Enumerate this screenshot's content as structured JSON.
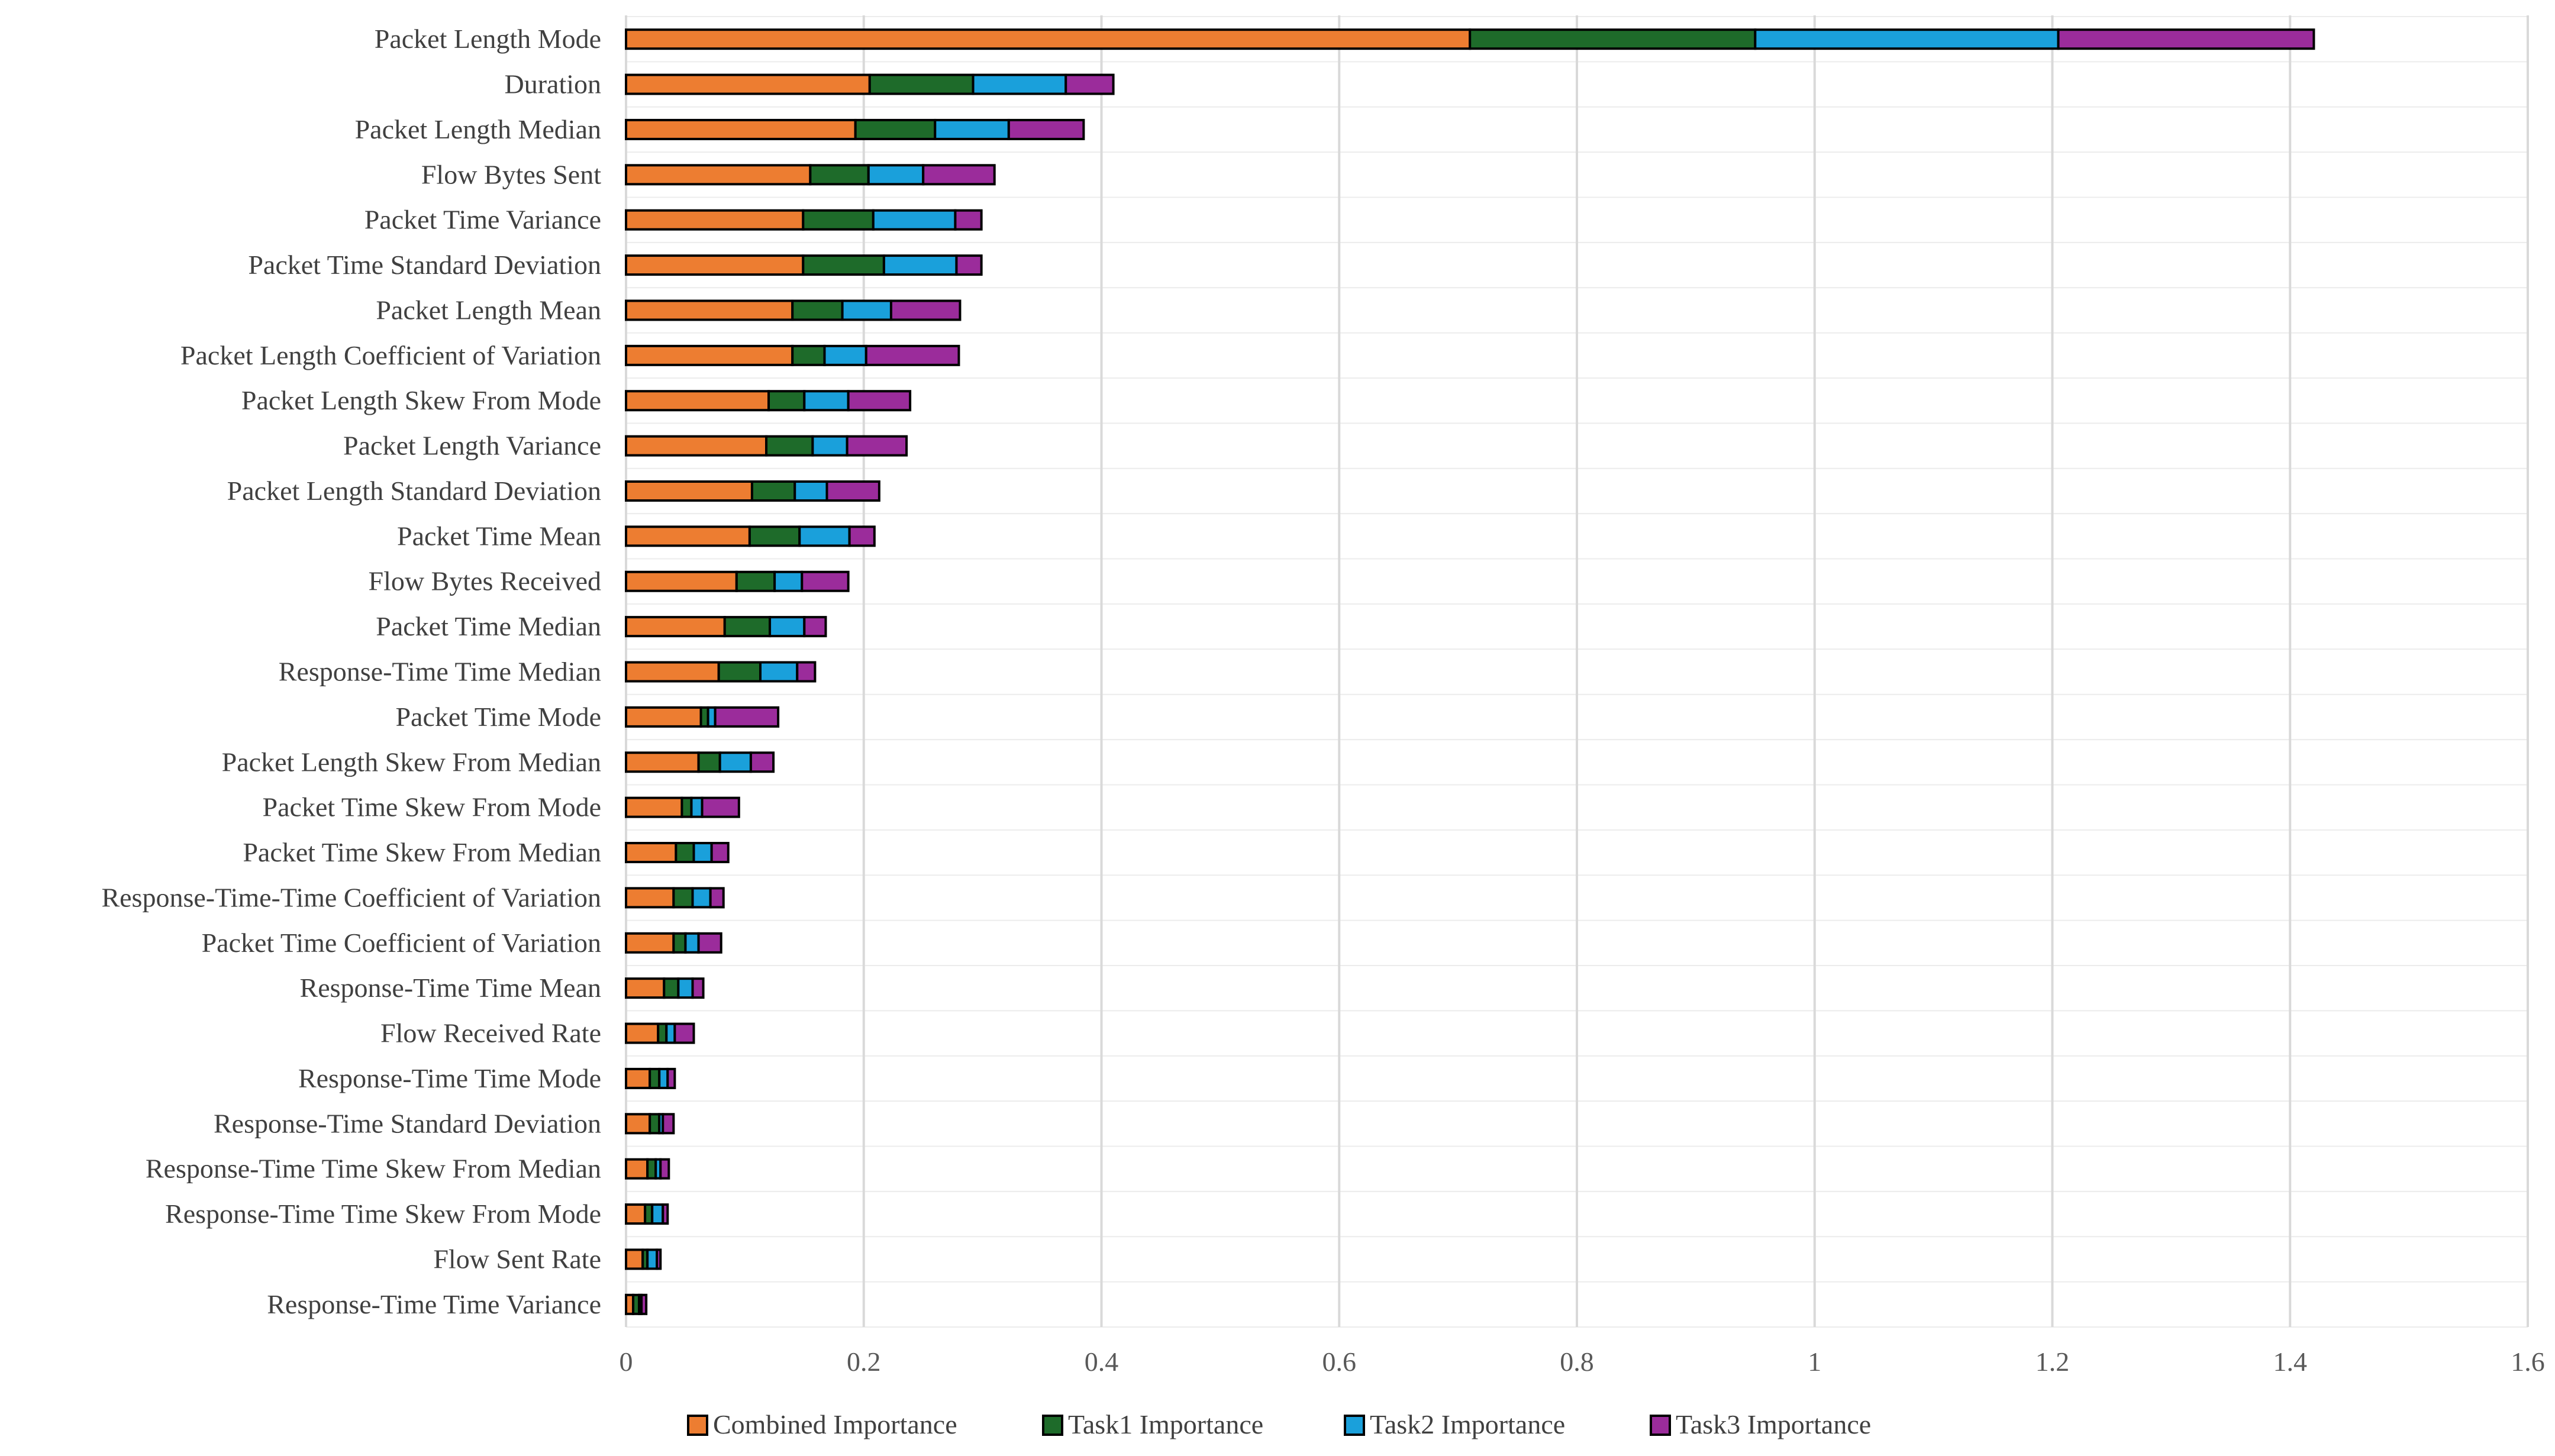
{
  "chart_data": {
    "type": "bar",
    "orientation": "horizontal",
    "stacked": true,
    "title": "",
    "xlabel": "",
    "ylabel": "",
    "xlim": [
      0,
      1.6
    ],
    "x_ticks": [
      "0",
      "0.2",
      "0.4",
      "0.6",
      "0.8",
      "1",
      "1.2",
      "1.4",
      "1.6"
    ],
    "grid": true,
    "legend_position": "bottom",
    "categories": [
      "Packet Length Mode",
      "Duration",
      "Packet Length Median",
      "Flow Bytes Sent",
      "Packet Time Variance",
      "Packet Time Standard Deviation",
      "Packet Length Mean",
      "Packet Length Coefficient of Variation",
      "Packet Length Skew From Mode",
      "Packet Length Variance",
      "Packet Length Standard Deviation",
      "Packet Time Mean",
      "Flow Bytes Received",
      "Packet Time Median",
      "Response-Time Time Median",
      "Packet Time Mode",
      "Packet Length Skew From Median",
      "Packet Time Skew From Mode",
      "Packet Time Skew From Median",
      "Response-Time-Time Coefficient of Variation",
      "Packet Time Coefficient of Variation",
      "Response-Time Time Mean",
      "Flow Received Rate",
      "Response-Time Time Mode",
      "Response-Time Standard Deviation",
      "Response-Time Time Skew From Median",
      "Response-Time Time Skew From Mode",
      "Flow Sent Rate",
      "Response-Time Time Variance"
    ],
    "series": [
      {
        "name": "Combined Importance",
        "color": "#ED7D31",
        "values": [
          0.71,
          0.205,
          0.193,
          0.155,
          0.149,
          0.149,
          0.14,
          0.14,
          0.12,
          0.118,
          0.106,
          0.104,
          0.093,
          0.083,
          0.078,
          0.063,
          0.061,
          0.047,
          0.042,
          0.04,
          0.04,
          0.032,
          0.027,
          0.02,
          0.02,
          0.018,
          0.016,
          0.014,
          0.006
        ]
      },
      {
        "name": "Task1 Importance",
        "color": "#1E6B2A",
        "values": [
          0.24,
          0.087,
          0.067,
          0.049,
          0.059,
          0.068,
          0.042,
          0.027,
          0.03,
          0.039,
          0.036,
          0.042,
          0.032,
          0.038,
          0.035,
          0.006,
          0.018,
          0.008,
          0.015,
          0.016,
          0.01,
          0.012,
          0.007,
          0.008,
          0.008,
          0.007,
          0.006,
          0.004,
          0.005
        ]
      },
      {
        "name": "Task2 Importance",
        "color": "#1AA0DB",
        "values": [
          0.255,
          0.078,
          0.062,
          0.046,
          0.069,
          0.061,
          0.041,
          0.035,
          0.037,
          0.029,
          0.027,
          0.042,
          0.023,
          0.029,
          0.031,
          0.006,
          0.026,
          0.009,
          0.015,
          0.015,
          0.011,
          0.012,
          0.007,
          0.007,
          0.003,
          0.004,
          0.009,
          0.008,
          0.002
        ]
      },
      {
        "name": "Task3 Importance",
        "color": "#9B2C9B",
        "values": [
          0.215,
          0.04,
          0.063,
          0.06,
          0.022,
          0.021,
          0.058,
          0.078,
          0.052,
          0.05,
          0.044,
          0.021,
          0.039,
          0.018,
          0.015,
          0.053,
          0.019,
          0.031,
          0.014,
          0.011,
          0.019,
          0.009,
          0.016,
          0.006,
          0.009,
          0.007,
          0.004,
          0.003,
          0.004
        ]
      }
    ]
  }
}
